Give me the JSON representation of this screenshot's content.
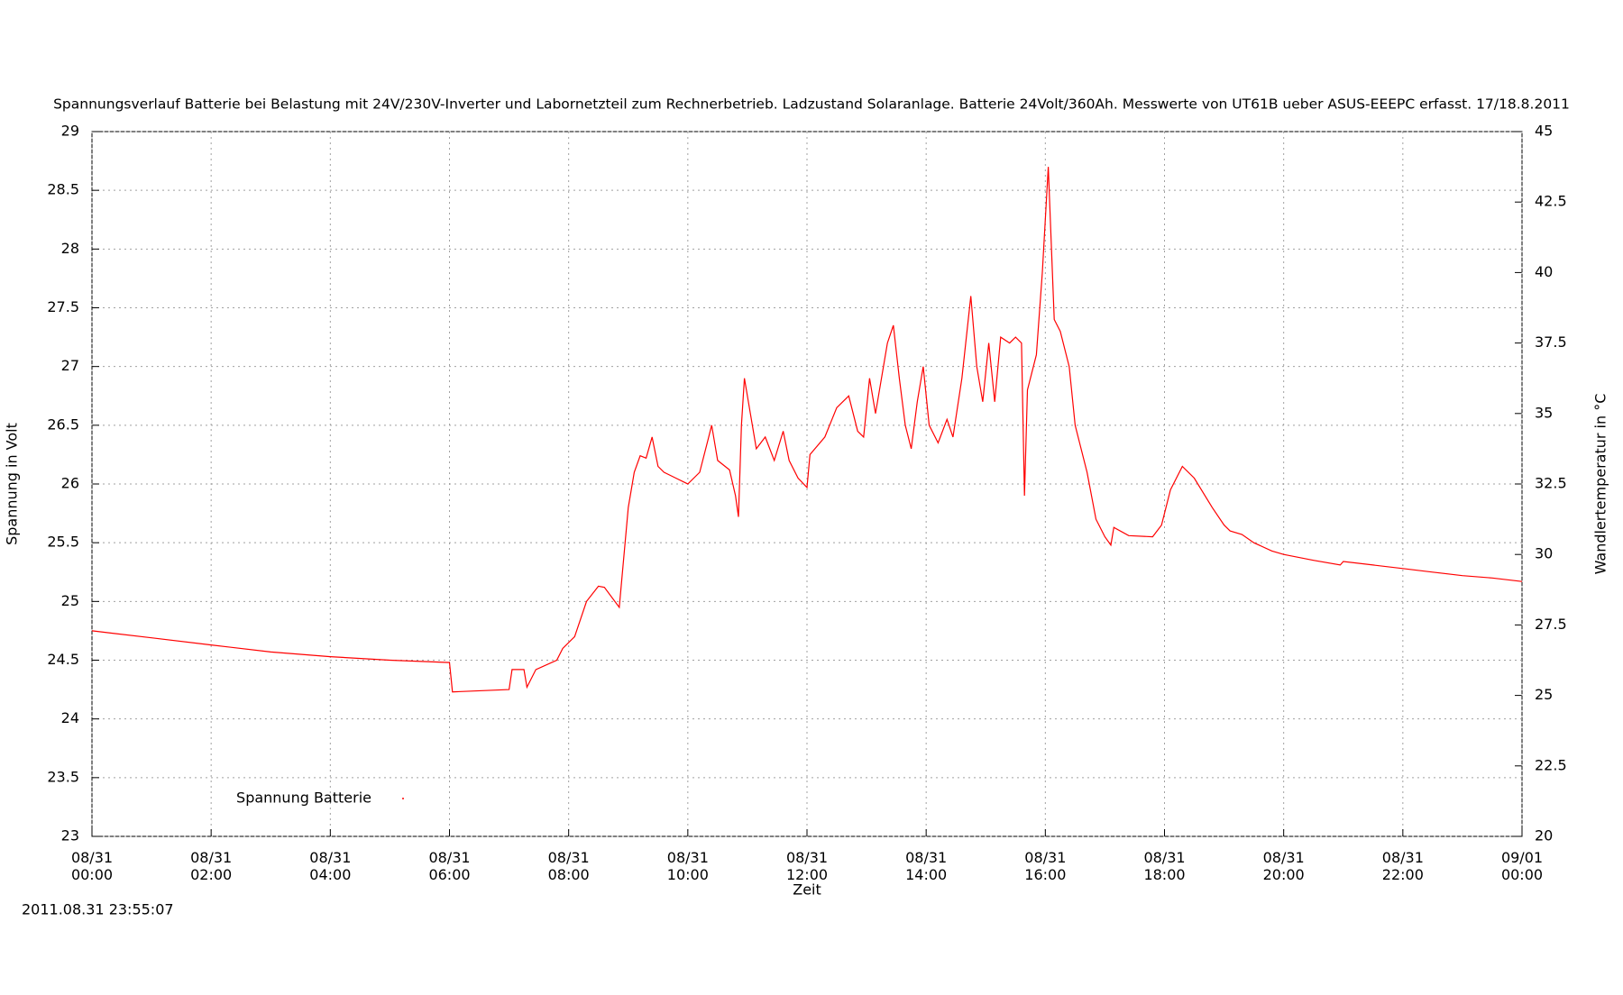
{
  "chart_data": {
    "type": "line",
    "title": "Spannungsverlauf Batterie bei Belastung mit 24V/230V-Inverter und Labornetzteil zum Rechnerbetrieb. Ladzustand Solaranlage. Batterie 24Volt/360Ah. Messwerte von UT61B ueber ASUS-EEEPC erfasst. 17/18.8.2011",
    "xlabel": "Zeit",
    "ylabel": "Spannung in Volt",
    "y2label": "Wandlertemperatur in °C",
    "footer": "2011.08.31 23:55:07",
    "x": [
      0,
      1,
      2,
      3,
      4,
      5,
      6,
      6.05,
      7,
      7.05,
      7.25,
      7.3,
      7.45,
      7.8,
      7.9,
      8.1,
      8.3,
      8.5,
      8.6,
      8.85,
      9,
      9.1,
      9.2,
      9.3,
      9.4,
      9.5,
      9.6,
      9.8,
      10,
      10.2,
      10.35,
      10.4,
      10.5,
      10.7,
      10.8,
      10.85,
      10.9,
      10.95,
      11.05,
      11.15,
      11.3,
      11.45,
      11.6,
      11.7,
      11.85,
      12,
      12.05,
      12.3,
      12.5,
      12.7,
      12.85,
      12.95,
      13.05,
      13.15,
      13.35,
      13.45,
      13.55,
      13.65,
      13.75,
      13.85,
      13.95,
      14.05,
      14.2,
      14.35,
      14.45,
      14.6,
      14.75,
      14.85,
      14.95,
      15.05,
      15.15,
      15.25,
      15.4,
      15.5,
      15.6,
      15.65,
      15.7,
      15.85,
      15.95,
      16.05,
      16.15,
      16.25,
      16.4,
      16.5,
      16.55,
      16.7,
      16.85,
      17,
      17.1,
      17.15,
      17.4,
      17.8,
      17.95,
      18.1,
      18.3,
      18.5,
      18.8,
      19,
      19.1,
      19.3,
      19.5,
      19.8,
      20,
      20.5,
      20.95,
      21,
      21.5,
      22,
      22.5,
      23,
      23.5,
      24
    ],
    "series": [
      {
        "name": "Spannung Batterie",
        "color": "#ff0000",
        "values": [
          24.75,
          24.69,
          24.63,
          24.57,
          24.53,
          24.5,
          24.48,
          24.23,
          24.25,
          24.42,
          24.42,
          24.27,
          24.42,
          24.5,
          24.6,
          24.7,
          25.0,
          25.13,
          25.12,
          24.95,
          25.8,
          26.1,
          26.24,
          26.22,
          26.4,
          26.15,
          26.1,
          26.05,
          26.0,
          26.1,
          26.4,
          26.5,
          26.2,
          26.12,
          25.9,
          25.72,
          26.5,
          26.9,
          26.6,
          26.3,
          26.4,
          26.2,
          26.45,
          26.2,
          26.05,
          25.97,
          26.25,
          26.4,
          26.65,
          26.75,
          26.45,
          26.4,
          26.9,
          26.6,
          27.2,
          27.35,
          26.9,
          26.5,
          26.3,
          26.7,
          27.0,
          26.5,
          26.35,
          26.55,
          26.4,
          26.9,
          27.6,
          27.0,
          26.7,
          27.2,
          26.7,
          27.25,
          27.2,
          27.25,
          27.2,
          25.9,
          26.8,
          27.1,
          27.8,
          28.7,
          27.4,
          27.3,
          27.0,
          26.5,
          26.4,
          26.1,
          25.7,
          25.55,
          25.48,
          25.63,
          25.56,
          25.55,
          25.65,
          25.95,
          26.15,
          26.05,
          25.8,
          25.65,
          25.6,
          25.57,
          25.5,
          25.43,
          25.4,
          25.35,
          25.31,
          25.34,
          25.31,
          25.28,
          25.25,
          25.22,
          25.2,
          25.17
        ]
      }
    ],
    "xlim": [
      0,
      24
    ],
    "xticks": [
      {
        "value": 0,
        "label": [
          "08/31",
          "00:00"
        ]
      },
      {
        "value": 2,
        "label": [
          "08/31",
          "02:00"
        ]
      },
      {
        "value": 4,
        "label": [
          "08/31",
          "04:00"
        ]
      },
      {
        "value": 6,
        "label": [
          "08/31",
          "06:00"
        ]
      },
      {
        "value": 8,
        "label": [
          "08/31",
          "08:00"
        ]
      },
      {
        "value": 10,
        "label": [
          "08/31",
          "10:00"
        ]
      },
      {
        "value": 12,
        "label": [
          "08/31",
          "12:00"
        ]
      },
      {
        "value": 14,
        "label": [
          "08/31",
          "14:00"
        ]
      },
      {
        "value": 16,
        "label": [
          "08/31",
          "16:00"
        ]
      },
      {
        "value": 18,
        "label": [
          "08/31",
          "18:00"
        ]
      },
      {
        "value": 20,
        "label": [
          "08/31",
          "20:00"
        ]
      },
      {
        "value": 22,
        "label": [
          "08/31",
          "22:00"
        ]
      },
      {
        "value": 24,
        "label": [
          "09/01",
          "00:00"
        ]
      }
    ],
    "ylim": [
      23,
      29
    ],
    "yticks": [
      23,
      23.5,
      24,
      24.5,
      25,
      25.5,
      26,
      26.5,
      27,
      27.5,
      28,
      28.5,
      29
    ],
    "y2lim": [
      20,
      45
    ],
    "y2ticks": [
      20,
      22.5,
      25,
      27.5,
      30,
      32.5,
      35,
      37.5,
      40,
      42.5,
      45
    ],
    "grid": true,
    "legend": "lower left"
  }
}
